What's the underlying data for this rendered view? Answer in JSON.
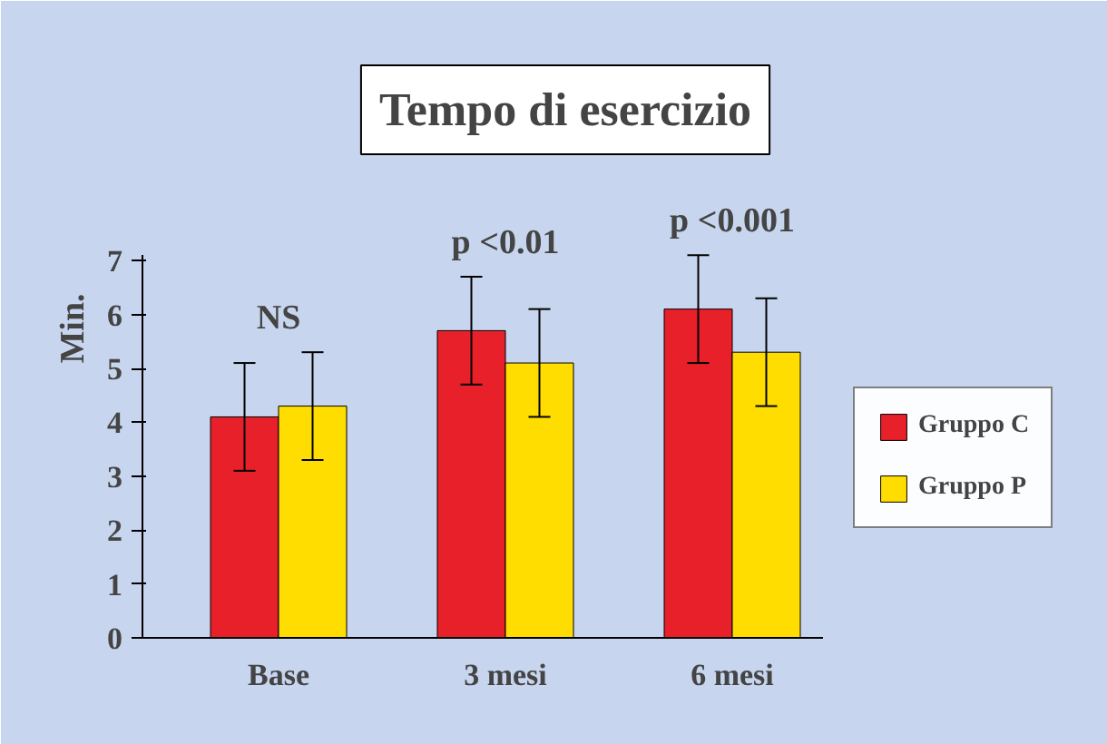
{
  "chart_data": {
    "type": "bar",
    "title": "Tempo di esercizio",
    "ylabel": "Min.",
    "categories": [
      "Base",
      "3 mesi",
      "6 mesi"
    ],
    "series": [
      {
        "name": "Gruppo C",
        "color": "#e8202a",
        "values": [
          4.1,
          5.7,
          6.1
        ],
        "errors": [
          1.0,
          1.0,
          1.0
        ]
      },
      {
        "name": "Gruppo P",
        "color": "#ffdd00",
        "values": [
          4.3,
          5.1,
          5.3
        ],
        "errors": [
          1.0,
          1.0,
          1.0
        ]
      }
    ],
    "annotations": [
      "NS",
      "p <0.01",
      "p <0.001"
    ],
    "ylim": [
      0,
      7.1
    ],
    "yticks": [
      0,
      1,
      2,
      3,
      4,
      5,
      6,
      7
    ],
    "legend": "right"
  }
}
